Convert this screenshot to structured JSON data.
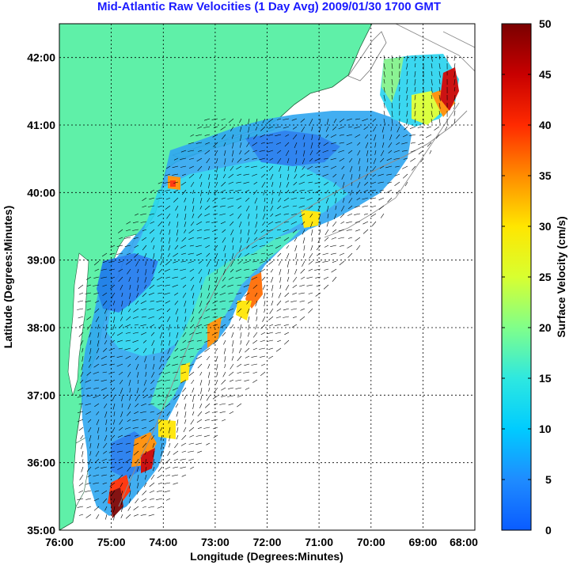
{
  "title": "Mid-Atlantic Raw Velocities (1 Day Avg) 2009/01/30 1700 GMT",
  "map": {
    "xlabel": "Longitude (Degrees:Minutes)",
    "ylabel": "Latitude (Degrees:Minutes)",
    "x_ticks": [
      "76:00",
      "75:00",
      "74:00",
      "73:00",
      "72:00",
      "71:00",
      "70:00",
      "69:00",
      "68:00"
    ],
    "y_ticks": [
      "42:00",
      "41:00",
      "40:00",
      "39:00",
      "38:00",
      "37:00",
      "36:00",
      "35:00"
    ],
    "lon_range": [
      -76,
      -68
    ],
    "lat_range": [
      35,
      42.5
    ],
    "land_color": "#5ff0a8"
  },
  "colorbar": {
    "label": "Surface Velocity (cm/s)",
    "ticks": [
      "50",
      "45",
      "40",
      "35",
      "30",
      "25",
      "20",
      "15",
      "10",
      "5",
      "0"
    ],
    "range": [
      0,
      50
    ]
  },
  "chart_data": {
    "type": "heatmap",
    "title": "Mid-Atlantic Raw Velocities (1 Day Avg) 2009/01/30 1700 GMT",
    "xlabel": "Longitude (Degrees:Minutes)",
    "ylabel": "Latitude (Degrees:Minutes)",
    "xlim": [
      -76,
      -68
    ],
    "ylim": [
      35,
      42.5
    ],
    "colorbar_label": "Surface Velocity (cm/s)",
    "clim": [
      0,
      50
    ],
    "grid": true,
    "hotspots": [
      {
        "lon": -68.6,
        "lat": 41.3,
        "speed": 45
      },
      {
        "lon": -74.2,
        "lat": 36.0,
        "speed": 42
      },
      {
        "lon": -74.8,
        "lat": 35.5,
        "speed": 48
      },
      {
        "lon": -72.6,
        "lat": 38.7,
        "speed": 38
      },
      {
        "lon": -73.1,
        "lat": 38.2,
        "speed": 30
      },
      {
        "lon": -73.9,
        "lat": 40.15,
        "speed": 30
      }
    ]
  }
}
